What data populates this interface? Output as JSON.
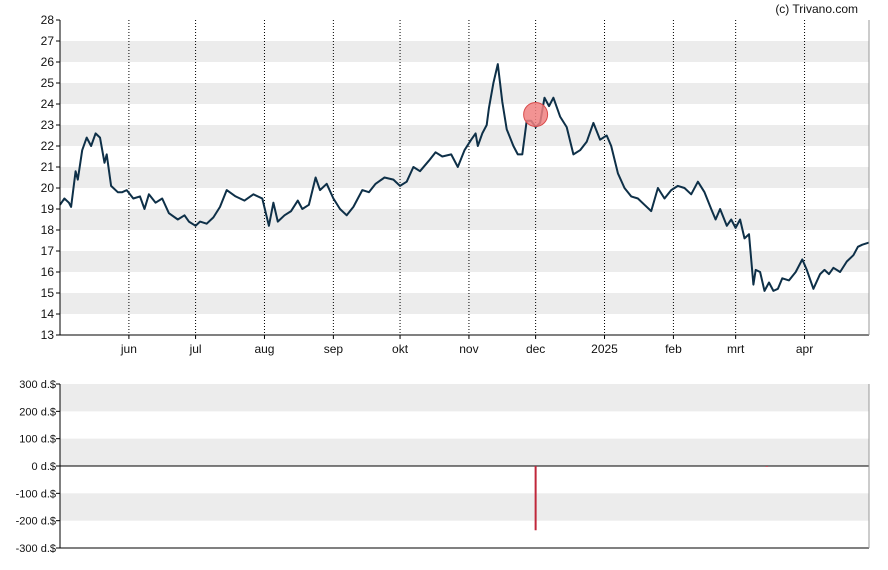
{
  "credit": "(c) Trivano.com",
  "colors": {
    "line": "#0e3048",
    "band": "#ececec",
    "marker_fill": "#f08080",
    "marker_stroke": "#d94c4c",
    "volume_bar": "#c0273a",
    "axis": "#000000"
  },
  "chart_data": [
    {
      "type": "line",
      "title": "",
      "xlabel": "",
      "ylabel": "",
      "ylim": [
        13,
        28
      ],
      "yticks": [
        13,
        14,
        15,
        16,
        17,
        18,
        19,
        20,
        21,
        22,
        23,
        24,
        25,
        26,
        27,
        28
      ],
      "grid": "dotted vertical at month starts, alternating grey horizontal bands",
      "x_range": [
        "2024-05-01",
        "2025-04-30"
      ],
      "x_tick_labels": [
        {
          "label": "jun",
          "date": "2024-06-01"
        },
        {
          "label": "jul",
          "date": "2024-07-01"
        },
        {
          "label": "aug",
          "date": "2024-08-01"
        },
        {
          "label": "sep",
          "date": "2024-09-01"
        },
        {
          "label": "okt",
          "date": "2024-10-01"
        },
        {
          "label": "nov",
          "date": "2024-11-01"
        },
        {
          "label": "dec",
          "date": "2024-12-01"
        },
        {
          "label": "2025",
          "date": "2025-01-01"
        },
        {
          "label": "feb",
          "date": "2025-02-01"
        },
        {
          "label": "mrt",
          "date": "2025-03-01"
        },
        {
          "label": "apr",
          "date": "2025-04-01"
        }
      ],
      "series": [
        {
          "points": [
            [
              "2024-05-01",
              19.2
            ],
            [
              "2024-05-03",
              19.5
            ],
            [
              "2024-05-05",
              19.3
            ],
            [
              "2024-05-06",
              19.1
            ],
            [
              "2024-05-08",
              20.8
            ],
            [
              "2024-05-09",
              20.4
            ],
            [
              "2024-05-11",
              21.8
            ],
            [
              "2024-05-13",
              22.4
            ],
            [
              "2024-05-15",
              22.0
            ],
            [
              "2024-05-17",
              22.6
            ],
            [
              "2024-05-19",
              22.4
            ],
            [
              "2024-05-21",
              21.2
            ],
            [
              "2024-05-22",
              21.6
            ],
            [
              "2024-05-24",
              20.1
            ],
            [
              "2024-05-27",
              19.8
            ],
            [
              "2024-05-29",
              19.8
            ],
            [
              "2024-05-31",
              19.9
            ],
            [
              "2024-06-03",
              19.5
            ],
            [
              "2024-06-06",
              19.6
            ],
            [
              "2024-06-08",
              19.0
            ],
            [
              "2024-06-10",
              19.7
            ],
            [
              "2024-06-13",
              19.3
            ],
            [
              "2024-06-16",
              19.5
            ],
            [
              "2024-06-19",
              18.8
            ],
            [
              "2024-06-23",
              18.5
            ],
            [
              "2024-06-26",
              18.7
            ],
            [
              "2024-06-28",
              18.4
            ],
            [
              "2024-07-01",
              18.2
            ],
            [
              "2024-07-03",
              18.4
            ],
            [
              "2024-07-06",
              18.3
            ],
            [
              "2024-07-09",
              18.6
            ],
            [
              "2024-07-12",
              19.1
            ],
            [
              "2024-07-15",
              19.9
            ],
            [
              "2024-07-19",
              19.6
            ],
            [
              "2024-07-23",
              19.4
            ],
            [
              "2024-07-27",
              19.7
            ],
            [
              "2024-07-31",
              19.5
            ],
            [
              "2024-08-03",
              18.2
            ],
            [
              "2024-08-05",
              19.3
            ],
            [
              "2024-08-07",
              18.4
            ],
            [
              "2024-08-10",
              18.7
            ],
            [
              "2024-08-13",
              18.9
            ],
            [
              "2024-08-16",
              19.4
            ],
            [
              "2024-08-18",
              19.0
            ],
            [
              "2024-08-21",
              19.2
            ],
            [
              "2024-08-24",
              20.5
            ],
            [
              "2024-08-26",
              19.9
            ],
            [
              "2024-08-29",
              20.2
            ],
            [
              "2024-09-01",
              19.5
            ],
            [
              "2024-09-04",
              19.0
            ],
            [
              "2024-09-07",
              18.7
            ],
            [
              "2024-09-10",
              19.1
            ],
            [
              "2024-09-14",
              19.9
            ],
            [
              "2024-09-17",
              19.8
            ],
            [
              "2024-09-20",
              20.2
            ],
            [
              "2024-09-24",
              20.5
            ],
            [
              "2024-09-28",
              20.4
            ],
            [
              "2024-10-01",
              20.1
            ],
            [
              "2024-10-04",
              20.3
            ],
            [
              "2024-10-07",
              21.0
            ],
            [
              "2024-10-10",
              20.8
            ],
            [
              "2024-10-14",
              21.3
            ],
            [
              "2024-10-17",
              21.7
            ],
            [
              "2024-10-20",
              21.5
            ],
            [
              "2024-10-24",
              21.6
            ],
            [
              "2024-10-27",
              21.0
            ],
            [
              "2024-10-30",
              21.8
            ],
            [
              "2024-11-02",
              22.3
            ],
            [
              "2024-11-04",
              22.6
            ],
            [
              "2024-11-05",
              22.0
            ],
            [
              "2024-11-07",
              22.6
            ],
            [
              "2024-11-09",
              23.0
            ],
            [
              "2024-11-10",
              23.8
            ],
            [
              "2024-11-12",
              25.0
            ],
            [
              "2024-11-14",
              25.9
            ],
            [
              "2024-11-16",
              24.1
            ],
            [
              "2024-11-18",
              22.8
            ],
            [
              "2024-11-21",
              22.0
            ],
            [
              "2024-11-23",
              21.6
            ],
            [
              "2024-11-25",
              21.6
            ],
            [
              "2024-11-27",
              23.2
            ],
            [
              "2024-11-29",
              23.2
            ],
            [
              "2024-12-01",
              22.9
            ],
            [
              "2024-12-03",
              23.1
            ],
            [
              "2024-12-05",
              24.3
            ],
            [
              "2024-12-07",
              23.9
            ],
            [
              "2024-12-09",
              24.3
            ],
            [
              "2024-12-12",
              23.4
            ],
            [
              "2024-12-15",
              22.9
            ],
            [
              "2024-12-18",
              21.6
            ],
            [
              "2024-12-21",
              21.8
            ],
            [
              "2024-12-24",
              22.2
            ],
            [
              "2024-12-27",
              23.1
            ],
            [
              "2024-12-30",
              22.3
            ],
            [
              "2025-01-02",
              22.5
            ],
            [
              "2025-01-04",
              22.0
            ],
            [
              "2025-01-07",
              20.7
            ],
            [
              "2025-01-10",
              20.0
            ],
            [
              "2025-01-13",
              19.6
            ],
            [
              "2025-01-16",
              19.5
            ],
            [
              "2025-01-19",
              19.2
            ],
            [
              "2025-01-22",
              18.9
            ],
            [
              "2025-01-25",
              20.0
            ],
            [
              "2025-01-28",
              19.5
            ],
            [
              "2025-01-31",
              19.9
            ],
            [
              "2025-02-03",
              20.1
            ],
            [
              "2025-02-06",
              20.0
            ],
            [
              "2025-02-09",
              19.7
            ],
            [
              "2025-02-12",
              20.3
            ],
            [
              "2025-02-15",
              19.8
            ],
            [
              "2025-02-18",
              19.0
            ],
            [
              "2025-02-20",
              18.5
            ],
            [
              "2025-02-22",
              19.0
            ],
            [
              "2025-02-25",
              18.2
            ],
            [
              "2025-02-27",
              18.5
            ],
            [
              "2025-03-01",
              18.1
            ],
            [
              "2025-03-03",
              18.5
            ],
            [
              "2025-03-05",
              17.6
            ],
            [
              "2025-03-07",
              17.8
            ],
            [
              "2025-03-09",
              15.4
            ],
            [
              "2025-03-10",
              16.1
            ],
            [
              "2025-03-12",
              16.0
            ],
            [
              "2025-03-14",
              15.1
            ],
            [
              "2025-03-16",
              15.5
            ],
            [
              "2025-03-18",
              15.1
            ],
            [
              "2025-03-20",
              15.2
            ],
            [
              "2025-03-22",
              15.7
            ],
            [
              "2025-03-25",
              15.6
            ],
            [
              "2025-03-28",
              16.0
            ],
            [
              "2025-03-31",
              16.6
            ],
            [
              "2025-04-02",
              16.1
            ],
            [
              "2025-04-05",
              15.2
            ],
            [
              "2025-04-08",
              15.9
            ],
            [
              "2025-04-10",
              16.1
            ],
            [
              "2025-04-12",
              15.9
            ],
            [
              "2025-04-14",
              16.2
            ],
            [
              "2025-04-17",
              16.0
            ],
            [
              "2025-04-20",
              16.5
            ],
            [
              "2025-04-23",
              16.8
            ],
            [
              "2025-04-25",
              17.2
            ],
            [
              "2025-04-27",
              17.3
            ],
            [
              "2025-04-30",
              17.4
            ]
          ]
        }
      ],
      "markers": [
        {
          "date": "2024-12-01",
          "value": 23.5
        }
      ]
    },
    {
      "type": "bar",
      "title": "",
      "xlabel": "",
      "ylabel": "",
      "ylim": [
        -300,
        300
      ],
      "yticks": [
        300,
        200,
        100,
        0,
        -100,
        -200,
        -300
      ],
      "ytick_labels": [
        "300 d.$",
        "200 d.$",
        "100 d.$",
        "0 d.$",
        "-100 d.$",
        "-200 d.$",
        "-300 d.$"
      ],
      "bars": [
        {
          "date": "2024-12-01",
          "value": -235
        },
        {
          "date": "2025-03-15",
          "value": -3
        }
      ]
    }
  ]
}
